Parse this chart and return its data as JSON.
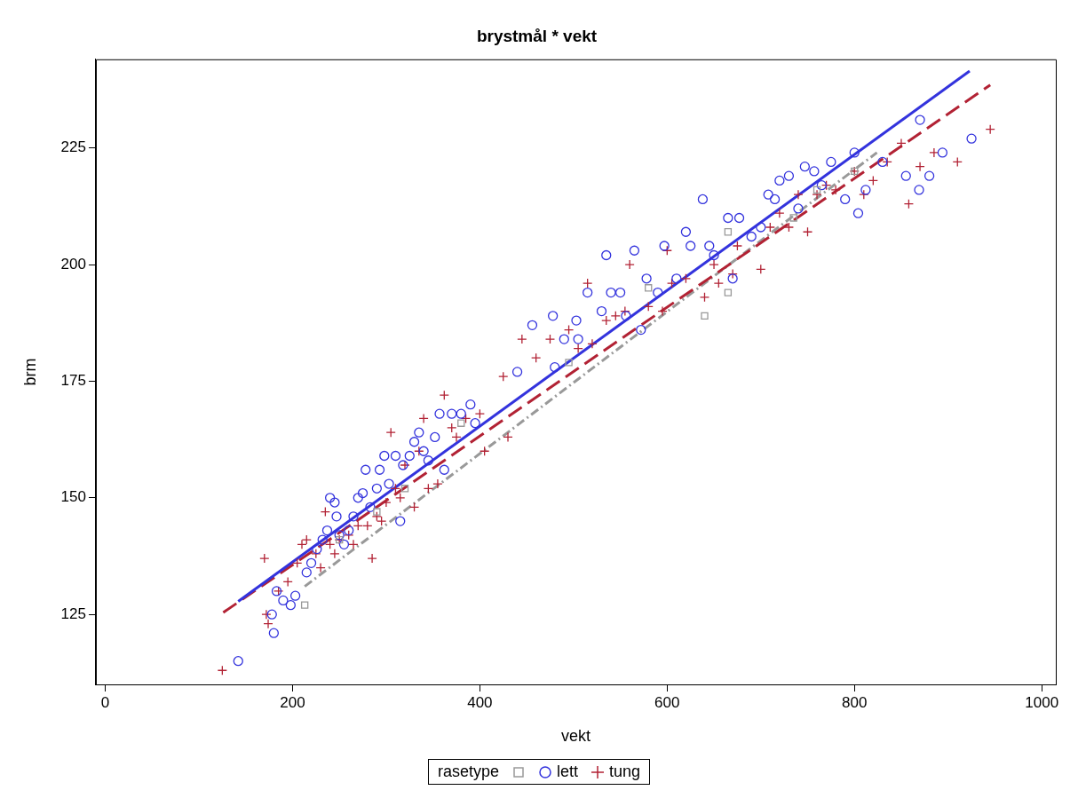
{
  "chart_data": {
    "type": "scatter",
    "title": "brystmål * vekt",
    "xlabel": "vekt",
    "ylabel": "brm",
    "legend_title": "rasetype",
    "legend": "bottom",
    "grid": false,
    "xlim": [
      -10,
      1015
    ],
    "xticks": [
      0,
      200,
      400,
      600,
      800,
      1000
    ],
    "ylim": [
      110,
      244
    ],
    "yticks": [
      125,
      150,
      175,
      200,
      225
    ],
    "series": [
      {
        "color": "#999999",
        "marker": "square",
        "x": [
          213,
          250,
          290,
          320,
          380,
          495,
          580,
          640,
          665,
          665,
          735,
          760,
          800
        ],
        "values": [
          127,
          141,
          147,
          152,
          166,
          179,
          195,
          189,
          207,
          194,
          210,
          216,
          220
        ]
      },
      {
        "name": "lett",
        "color": "#3333dd",
        "marker": "circle",
        "x": [
          142,
          180,
          178,
          183,
          190,
          198,
          203,
          215,
          220,
          226,
          232,
          237,
          240,
          245,
          247,
          250,
          255,
          260,
          265,
          270,
          275,
          278,
          283,
          290,
          293,
          298,
          303,
          310,
          315,
          318,
          325,
          330,
          335,
          340,
          345,
          352,
          357,
          362,
          370,
          380,
          390,
          395,
          440,
          456,
          478,
          480,
          490,
          503,
          505,
          515,
          530,
          535,
          540,
          550,
          556,
          565,
          572,
          578,
          590,
          597,
          610,
          620,
          625,
          638,
          645,
          650,
          665,
          670,
          677,
          690,
          700,
          708,
          715,
          720,
          730,
          740,
          747,
          757,
          765,
          775,
          790,
          800,
          804,
          812,
          830,
          855,
          869,
          870,
          880,
          894,
          925
        ],
        "values": [
          115,
          121,
          125,
          130,
          128,
          127,
          129,
          134,
          136,
          139,
          141,
          143,
          150,
          149,
          146,
          142,
          140,
          143,
          146,
          150,
          151,
          156,
          148,
          152,
          156,
          159,
          153,
          159,
          145,
          157,
          159,
          162,
          164,
          160,
          158,
          163,
          168,
          156,
          168,
          168,
          170,
          166,
          177,
          187,
          189,
          178,
          184,
          188,
          184,
          194,
          190,
          202,
          194,
          194,
          189,
          203,
          186,
          197,
          194,
          204,
          197,
          207,
          204,
          214,
          204,
          202,
          210,
          197,
          210,
          206,
          208,
          215,
          214,
          218,
          219,
          212,
          221,
          220,
          217,
          222,
          214,
          224,
          211,
          216,
          222,
          219,
          216,
          231,
          219,
          224,
          227
        ]
      },
      {
        "name": "tung",
        "color": "#b22234",
        "marker": "cross",
        "x": [
          125,
          170,
          172,
          174,
          185,
          195,
          205,
          210,
          215,
          225,
          230,
          235,
          240,
          245,
          250,
          260,
          265,
          270,
          280,
          285,
          290,
          295,
          300,
          305,
          310,
          315,
          320,
          330,
          335,
          340,
          345,
          355,
          362,
          370,
          375,
          385,
          400,
          405,
          425,
          430,
          445,
          460,
          475,
          495,
          505,
          515,
          520,
          535,
          545,
          555,
          560,
          580,
          595,
          600,
          605,
          620,
          640,
          650,
          655,
          670,
          675,
          700,
          710,
          720,
          730,
          740,
          750,
          760,
          770,
          780,
          800,
          810,
          820,
          835,
          850,
          858,
          870,
          885,
          910,
          945
        ],
        "values": [
          113,
          137,
          125,
          123,
          130,
          132,
          136,
          140,
          141,
          138,
          135,
          147,
          140,
          138,
          141,
          142,
          140,
          144,
          144,
          137,
          146,
          145,
          149,
          164,
          152,
          150,
          157,
          148,
          160,
          167,
          152,
          153,
          172,
          165,
          163,
          167,
          168,
          160,
          176,
          163,
          184,
          180,
          184,
          186,
          182,
          196,
          183,
          188,
          189,
          190,
          200,
          191,
          190,
          203,
          196,
          197,
          193,
          200,
          196,
          198,
          204,
          199,
          208,
          211,
          208,
          215,
          207,
          215,
          217,
          216,
          220,
          215,
          218,
          222,
          226,
          213,
          221,
          224,
          222,
          229
        ]
      },
      {
        "type": "line",
        "color": "#3333dd",
        "line_style": "solid",
        "marker": "none",
        "x": [
          142,
          923
        ],
        "values": [
          127.8,
          241.5
        ]
      },
      {
        "type": "line",
        "color": "#b22234",
        "line_style": "dashed",
        "marker": "none",
        "x": [
          126,
          945
        ],
        "values": [
          125.4,
          238.5
        ]
      },
      {
        "type": "line",
        "color": "#999999",
        "line_style": "dotted",
        "marker": "none",
        "x": [
          213,
          824
        ],
        "values": [
          131,
          224
        ]
      }
    ]
  }
}
